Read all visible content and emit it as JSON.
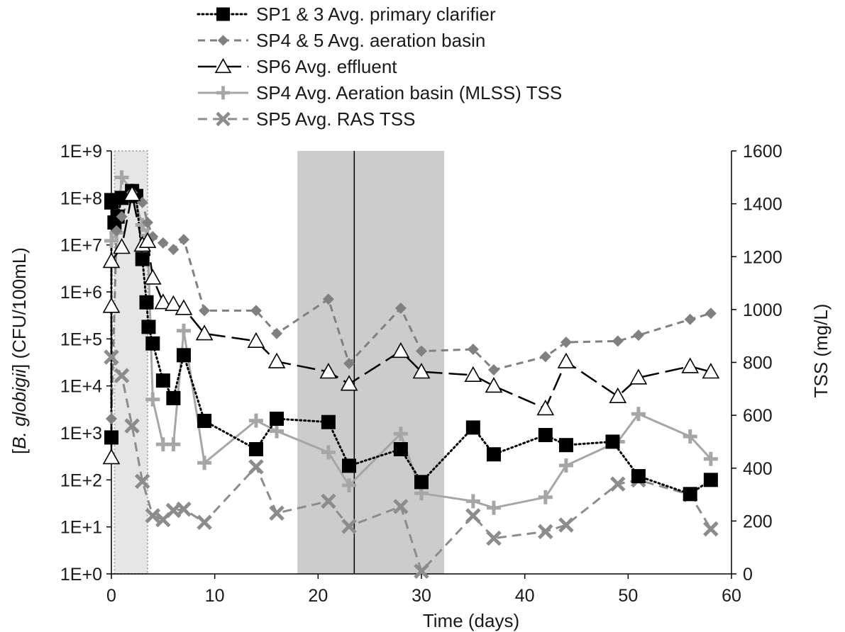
{
  "chart_data": {
    "type": "line",
    "xlabel": "Time (days)",
    "ylabel_left": {
      "open": "[",
      "italic": "B. globigii",
      "close": "] (CFU/100mL)"
    },
    "ylabel_right": "TSS (mg/L)",
    "xlim": [
      0,
      60
    ],
    "xticks": [
      "0",
      "10",
      "20",
      "30",
      "40",
      "50",
      "60"
    ],
    "ylim_left": [
      1,
      1000000000
    ],
    "yscale_left": "log",
    "yticks_left": [
      "1E+0",
      "1E+1",
      "1E+2",
      "1E+3",
      "1E+4",
      "1E+5",
      "1E+6",
      "1E+7",
      "1E+8",
      "1E+9"
    ],
    "ylim_right": [
      0,
      1600
    ],
    "yticks_right": [
      "0",
      "200",
      "400",
      "600",
      "800",
      "1000",
      "1200",
      "1400",
      "1600"
    ],
    "grid": false,
    "legend_position": "top",
    "shaded_regions": [
      {
        "x0": 0.3,
        "x1": 3.5,
        "style": "light-dotted-border"
      },
      {
        "x0": 18,
        "x1": 32.2,
        "style": "dark"
      }
    ],
    "vertical_lines": [
      23.5
    ],
    "series": [
      {
        "name": "SP1 & 3 Avg. primary clarifier",
        "axis": "left",
        "marker": "square",
        "line": "dotted",
        "color": "#000000",
        "x": [
          0,
          0,
          0,
          0.3,
          0.6,
          1,
          2,
          2.4,
          3,
          3.4,
          3.6,
          4,
          5,
          6,
          7,
          9,
          14,
          16,
          21,
          23,
          28,
          30,
          35,
          37,
          42,
          44,
          48.5,
          51,
          56,
          58
        ],
        "y": [
          800,
          90000000,
          80000000,
          30000000,
          40000000,
          100000000,
          140000000,
          110000000,
          5000000,
          600000,
          180000,
          80000,
          13000,
          5500,
          45000,
          1800,
          450,
          2000,
          1700,
          200,
          450,
          90,
          1300,
          350,
          900,
          550,
          650,
          120,
          50,
          100
        ]
      },
      {
        "name": "SP4 & 5 Avg. aeration basin",
        "axis": "left",
        "marker": "diamond",
        "line": "short-dash",
        "color": "#808080",
        "x": [
          0,
          0.5,
          1,
          2,
          3,
          3.5,
          4,
          5,
          6,
          7,
          9,
          14,
          16,
          21,
          23,
          28,
          30,
          35,
          37,
          42,
          44,
          49,
          51,
          56,
          58
        ],
        "y": [
          2000,
          20000000,
          40000000,
          130000000,
          80000000,
          30000000,
          15000000,
          11000000,
          8000000,
          13000000,
          400000,
          400000,
          130000,
          700000,
          30000,
          450000,
          55000,
          60000,
          22000,
          42000,
          85000,
          90000,
          120000,
          260000,
          350000
        ]
      },
      {
        "name": "SP6 Avg. effluent",
        "axis": "left",
        "marker": "triangle-open",
        "line": "long-dash",
        "color": "#000000",
        "x": [
          0,
          0,
          0,
          1,
          2,
          3,
          3.5,
          4,
          5,
          6,
          7,
          9,
          14,
          16,
          21,
          23,
          28,
          30,
          35,
          37,
          42,
          44,
          49,
          51,
          56,
          58
        ],
        "y": [
          300,
          500000,
          4500000,
          9000000,
          120000000,
          10000000,
          12000000,
          2000000,
          600000,
          550000,
          450000,
          130000,
          90000,
          33000,
          20000,
          11000,
          55000,
          20000,
          17000,
          10000,
          3300,
          33000,
          6000,
          15000,
          26000,
          20000
        ]
      },
      {
        "name": "SP4 Avg. Aeration basin (MLSS) TSS",
        "axis": "right",
        "marker": "plus",
        "line": "solid",
        "color": "#a6a6a6",
        "x": [
          0,
          0.5,
          1,
          2,
          3,
          3.5,
          4,
          5,
          6,
          7,
          9,
          14,
          16,
          21,
          23,
          28,
          30,
          35,
          37,
          42,
          44,
          49,
          51,
          56,
          58
        ],
        "y": [
          1260,
          1290,
          1500,
          1450,
          1320,
          1280,
          660,
          490,
          490,
          920,
          420,
          580,
          540,
          460,
          335,
          530,
          305,
          275,
          250,
          290,
          410,
          500,
          605,
          520,
          435
        ]
      },
      {
        "name": "SP5 Avg. RAS TSS",
        "axis": "right",
        "marker": "x",
        "line": "dash",
        "color": "#8c8c8c",
        "x": [
          0,
          1,
          2,
          3,
          4,
          5,
          6,
          7,
          9,
          14,
          16,
          21,
          23,
          28,
          30,
          35,
          37,
          42,
          44,
          49,
          51,
          56,
          58
        ],
        "y": [
          820,
          750,
          560,
          350,
          220,
          205,
          240,
          245,
          195,
          405,
          230,
          275,
          180,
          255,
          10,
          220,
          135,
          160,
          185,
          340,
          355,
          300,
          170
        ]
      }
    ]
  }
}
